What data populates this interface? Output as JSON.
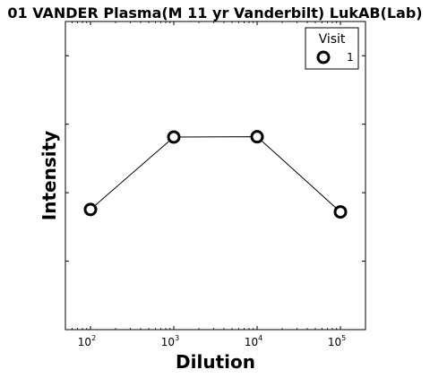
{
  "chart_data": {
    "type": "line",
    "title": "01 VANDER Plasma(M 11 yr Vanderbilt) LukAB(Lab)",
    "xlabel": "Dilution",
    "ylabel": "Intensity",
    "x_scale": "log",
    "xlim": [
      50,
      200000
    ],
    "ylim": [
      0,
      1
    ],
    "x_ticks": [
      {
        "value": 100,
        "base": "10",
        "exp": "2"
      },
      {
        "value": 1000,
        "base": "10",
        "exp": "3"
      },
      {
        "value": 10000,
        "base": "10",
        "exp": "4"
      },
      {
        "value": 100000,
        "base": "10",
        "exp": "5"
      }
    ],
    "y_tick_labels_shown": false,
    "grid": false,
    "legend": {
      "title": "Visit",
      "placement": "top-right"
    },
    "series": [
      {
        "name": "1",
        "marker": "open-circle",
        "color": "#000000",
        "x": [
          100,
          1000,
          10000,
          100000
        ],
        "y": [
          0.39,
          0.625,
          0.626,
          0.382
        ]
      }
    ]
  }
}
